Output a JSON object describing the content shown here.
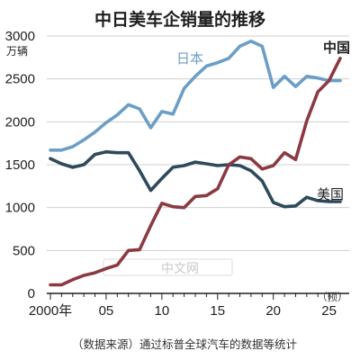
{
  "chart_data": {
    "type": "line",
    "title": "中日美车企销量的推移",
    "unit_label": "万辆",
    "ylim": [
      0,
      3000
    ],
    "xlim": [
      2000,
      2026
    ],
    "y_ticks": [
      0,
      500,
      1000,
      1500,
      2000,
      2500,
      3000
    ],
    "x_ticks": [
      {
        "value": 2000,
        "label": "2000年"
      },
      {
        "value": 2005,
        "label": "05"
      },
      {
        "value": 2010,
        "label": "10"
      },
      {
        "value": 2015,
        "label": "15"
      },
      {
        "value": 2020,
        "label": "20"
      },
      {
        "value": 2025,
        "label": "25"
      }
    ],
    "forecast_note": "（预）",
    "grid": true,
    "series": [
      {
        "name": "日本",
        "color": "#6b9ec7",
        "x": [
          2000,
          2001,
          2002,
          2003,
          2004,
          2005,
          2006,
          2007,
          2008,
          2009,
          2010,
          2011,
          2012,
          2013,
          2014,
          2015,
          2016,
          2017,
          2018,
          2019,
          2020,
          2021,
          2022,
          2023,
          2024,
          2025,
          2026
        ],
        "values": [
          1670,
          1670,
          1710,
          1790,
          1880,
          1990,
          2080,
          2200,
          2150,
          1930,
          2120,
          2090,
          2390,
          2530,
          2650,
          2690,
          2740,
          2880,
          2940,
          2880,
          2400,
          2530,
          2410,
          2530,
          2510,
          2480,
          2480
        ]
      },
      {
        "name": "美国",
        "color": "#2d4a5c",
        "x": [
          2000,
          2001,
          2002,
          2003,
          2004,
          2005,
          2006,
          2007,
          2008,
          2009,
          2010,
          2011,
          2012,
          2013,
          2014,
          2015,
          2016,
          2017,
          2018,
          2019,
          2020,
          2021,
          2022,
          2023,
          2024,
          2025,
          2026
        ],
        "values": [
          1570,
          1510,
          1470,
          1500,
          1620,
          1650,
          1640,
          1640,
          1430,
          1200,
          1340,
          1470,
          1490,
          1530,
          1510,
          1490,
          1500,
          1490,
          1430,
          1310,
          1060,
          1010,
          1020,
          1120,
          1080,
          1070,
          1070
        ]
      },
      {
        "name": "中国",
        "color": "#8b3a42",
        "x": [
          2000,
          2001,
          2002,
          2003,
          2004,
          2005,
          2006,
          2007,
          2008,
          2009,
          2010,
          2011,
          2012,
          2013,
          2014,
          2015,
          2016,
          2017,
          2018,
          2019,
          2020,
          2021,
          2022,
          2023,
          2024,
          2025,
          2026
        ],
        "values": [
          100,
          100,
          160,
          210,
          240,
          290,
          330,
          500,
          510,
          790,
          1050,
          1010,
          1000,
          1130,
          1140,
          1220,
          1500,
          1590,
          1570,
          1450,
          1490,
          1640,
          1560,
          2010,
          2350,
          2480,
          2740
        ]
      }
    ],
    "source": "（数据来源）通过标普全球汽车的数据等统计"
  },
  "watermark": "中文网"
}
